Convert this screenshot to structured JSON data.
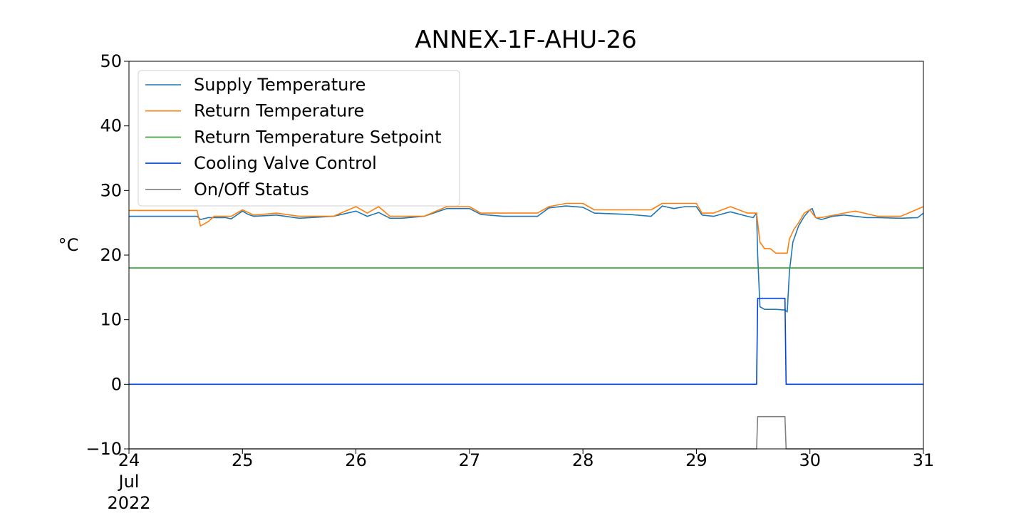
{
  "chart_data": {
    "type": "line",
    "title": "ANNEX-1F-AHU-26",
    "ylabel": "°C",
    "xlabel": "",
    "ylim": [
      -10,
      50
    ],
    "xlim": [
      24,
      31
    ],
    "yticks": [
      -10,
      0,
      10,
      20,
      30,
      40,
      50
    ],
    "ytick_labels": [
      "−10",
      "0",
      "10",
      "20",
      "30",
      "40",
      "50"
    ],
    "xticks": [
      24,
      25,
      26,
      27,
      28,
      29,
      30,
      31
    ],
    "xtick_labels": [
      "24",
      "25",
      "26",
      "27",
      "28",
      "29",
      "30",
      "31"
    ],
    "xtick_sub_labels": [
      "Jul",
      "2022"
    ],
    "grid": false,
    "legend_position": "upper-left",
    "series": [
      {
        "name": "Supply Temperature",
        "color": "#1f77b4",
        "x": [
          24.0,
          24.6,
          24.63,
          24.7,
          24.85,
          24.9,
          25.0,
          25.05,
          25.1,
          25.3,
          25.5,
          25.8,
          26.0,
          26.1,
          26.2,
          26.3,
          26.4,
          26.6,
          26.8,
          27.0,
          27.1,
          27.3,
          27.6,
          27.7,
          27.85,
          28.0,
          28.1,
          28.4,
          28.6,
          28.7,
          28.8,
          28.9,
          29.0,
          29.05,
          29.15,
          29.3,
          29.45,
          29.5,
          29.53,
          29.54,
          29.56,
          29.6,
          29.7,
          29.78,
          29.8,
          29.82,
          29.85,
          29.9,
          29.95,
          30.0,
          30.02,
          30.05,
          30.1,
          30.2,
          30.3,
          30.5,
          30.6,
          30.8,
          30.95,
          31.0
        ],
        "values": [
          26.0,
          26.0,
          25.5,
          25.8,
          25.8,
          25.6,
          26.8,
          26.3,
          26.0,
          26.2,
          25.7,
          26.0,
          26.8,
          26.0,
          26.6,
          25.7,
          25.7,
          26.0,
          27.2,
          27.2,
          26.3,
          26.0,
          26.0,
          27.3,
          27.6,
          27.4,
          26.5,
          26.3,
          26.0,
          27.6,
          27.2,
          27.5,
          27.5,
          26.2,
          26.0,
          26.7,
          26.0,
          25.8,
          26.5,
          20.0,
          12.0,
          11.6,
          11.6,
          11.5,
          11.2,
          17.5,
          22.0,
          24.5,
          26.0,
          27.0,
          27.2,
          25.8,
          25.5,
          26.0,
          26.2,
          25.8,
          25.8,
          25.7,
          25.8,
          26.5
        ]
      },
      {
        "name": "Return Temperature",
        "color": "#ff7f0e",
        "x": [
          24.0,
          24.6,
          24.63,
          24.7,
          24.75,
          24.9,
          25.0,
          25.1,
          25.3,
          25.5,
          25.8,
          26.0,
          26.1,
          26.2,
          26.3,
          26.4,
          26.6,
          26.8,
          27.0,
          27.1,
          27.3,
          27.6,
          27.7,
          27.85,
          28.0,
          28.1,
          28.4,
          28.6,
          28.7,
          28.8,
          28.9,
          29.0,
          29.05,
          29.15,
          29.3,
          29.45,
          29.53,
          29.56,
          29.6,
          29.65,
          29.7,
          29.8,
          29.82,
          29.86,
          29.9,
          29.95,
          30.0,
          30.05,
          30.1,
          30.3,
          30.4,
          30.6,
          30.8,
          31.0
        ],
        "values": [
          26.9,
          26.9,
          24.5,
          25.2,
          26.0,
          26.0,
          27.0,
          26.2,
          26.5,
          26.0,
          26.0,
          27.5,
          26.5,
          27.5,
          26.0,
          26.0,
          26.0,
          27.5,
          27.5,
          26.5,
          26.5,
          26.5,
          27.5,
          28.0,
          28.0,
          27.0,
          27.0,
          27.0,
          28.0,
          28.0,
          28.0,
          28.0,
          26.5,
          26.5,
          27.5,
          26.5,
          26.5,
          22.0,
          21.0,
          21.0,
          20.3,
          20.3,
          22.5,
          24.0,
          25.0,
          26.5,
          27.0,
          25.8,
          25.8,
          26.5,
          26.8,
          26.0,
          26.0,
          27.5
        ]
      },
      {
        "name": "Return Temperature Setpoint",
        "color": "#2ca02c",
        "x": [
          24.0,
          31.0
        ],
        "values": [
          18.0,
          18.0
        ]
      },
      {
        "name": "Cooling Valve Control",
        "color": "#0044dd",
        "x": [
          24.0,
          29.53,
          29.54,
          29.78,
          29.79,
          31.0
        ],
        "values": [
          0.0,
          0.0,
          13.3,
          13.3,
          0.0,
          0.0
        ]
      },
      {
        "name": "On/Off Status",
        "color": "#808080",
        "x": [
          24.0,
          29.53,
          29.54,
          29.78,
          29.79,
          31.0
        ],
        "values": [
          -10.0,
          -10.0,
          -5.0,
          -5.0,
          -10.0,
          -10.0
        ]
      }
    ]
  }
}
